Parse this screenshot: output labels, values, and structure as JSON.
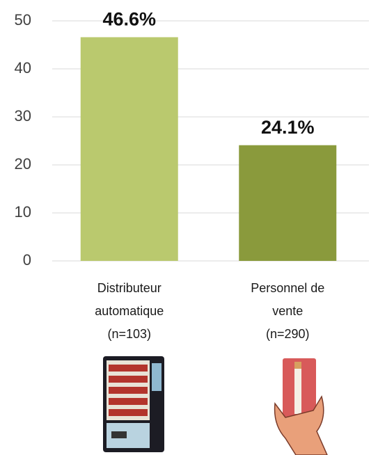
{
  "chart_data": {
    "type": "bar",
    "categories": [
      [
        "Distributeur",
        "automatique",
        "(n=103)"
      ],
      [
        "Personnel de",
        "vente",
        "(n=290)"
      ]
    ],
    "values": [
      46.6,
      24.1
    ],
    "value_labels": [
      "46.6%",
      "24.1%"
    ],
    "colors": [
      "#bac96e",
      "#8a9a3c"
    ],
    "ylim": [
      0,
      50
    ],
    "yticks": [
      0,
      10,
      20,
      30,
      40,
      50
    ],
    "grid": true
  }
}
